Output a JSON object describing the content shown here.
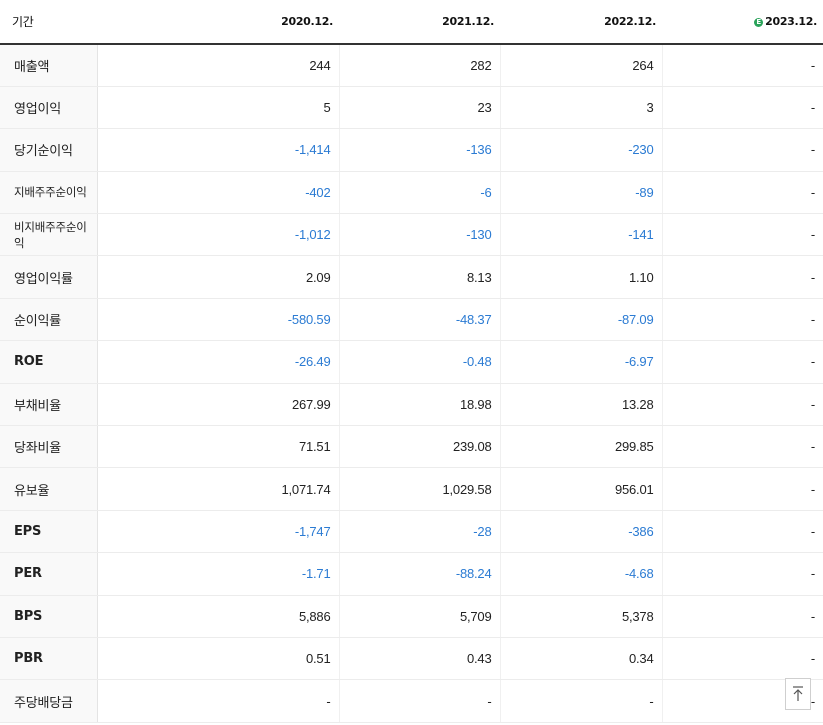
{
  "header": {
    "period_label": "기간",
    "columns": [
      "2020.12.",
      "2021.12.",
      "2022.12.",
      "2023.12."
    ],
    "estimate_badge": "E"
  },
  "rows": [
    {
      "label": "매출액",
      "values": [
        "244",
        "282",
        "264",
        "-"
      ]
    },
    {
      "label": "영업이익",
      "values": [
        "5",
        "23",
        "3",
        "-"
      ]
    },
    {
      "label": "당기순이익",
      "values": [
        "-1,414",
        "-136",
        "-230",
        "-"
      ]
    },
    {
      "label": "지배주주순이익",
      "values": [
        "-402",
        "-6",
        "-89",
        "-"
      ]
    },
    {
      "label": "비지배주주순이익",
      "values": [
        "-1,012",
        "-130",
        "-141",
        "-"
      ]
    },
    {
      "label": "영업이익률",
      "values": [
        "2.09",
        "8.13",
        "1.10",
        "-"
      ]
    },
    {
      "label": "순이익률",
      "values": [
        "-580.59",
        "-48.37",
        "-87.09",
        "-"
      ]
    },
    {
      "label": "ROE",
      "values": [
        "-26.49",
        "-0.48",
        "-6.97",
        "-"
      ]
    },
    {
      "label": "부채비율",
      "values": [
        "267.99",
        "18.98",
        "13.28",
        "-"
      ]
    },
    {
      "label": "당좌비율",
      "values": [
        "71.51",
        "239.08",
        "299.85",
        "-"
      ]
    },
    {
      "label": "유보율",
      "values": [
        "1,071.74",
        "1,029.58",
        "956.01",
        "-"
      ]
    },
    {
      "label": "EPS",
      "values": [
        "-1,747",
        "-28",
        "-386",
        "-"
      ]
    },
    {
      "label": "PER",
      "values": [
        "-1.71",
        "-88.24",
        "-4.68",
        "-"
      ]
    },
    {
      "label": "BPS",
      "values": [
        "5,886",
        "5,709",
        "5,378",
        "-"
      ]
    },
    {
      "label": "PBR",
      "values": [
        "0.51",
        "0.43",
        "0.34",
        "-"
      ]
    },
    {
      "label": "주당배당금",
      "values": [
        "-",
        "-",
        "-",
        "-"
      ]
    }
  ],
  "colors": {
    "negative": "#2b7bd3",
    "estimate_badge": "#2aa35a"
  },
  "top_button": {
    "icon": "arrow-up-to-top-icon"
  }
}
